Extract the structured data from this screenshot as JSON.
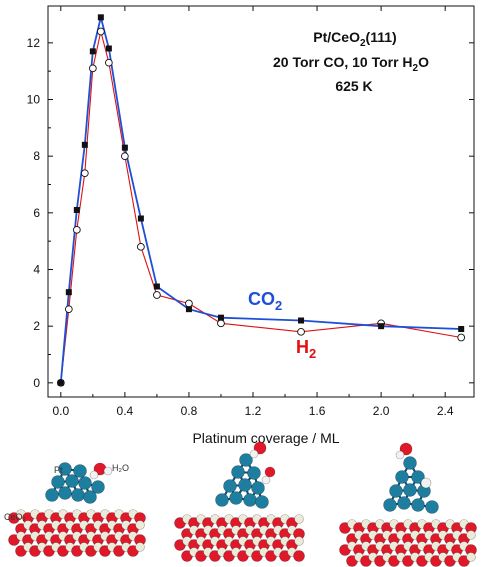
{
  "chart_data": {
    "type": "line",
    "xlabel": "Platinum coverage / ML",
    "ylabel": "",
    "xlim": [
      -0.08,
      2.58
    ],
    "ylim": [
      -0.5,
      13.3
    ],
    "xticks": [
      0.0,
      0.4,
      0.8,
      1.2,
      1.6,
      2.0,
      2.4
    ],
    "xtick_labels": [
      "0.0",
      "0.4",
      "0.8",
      "1.2",
      "1.6",
      "2.0",
      "2.4"
    ],
    "yticks": [
      0,
      2,
      4,
      6,
      8,
      10,
      12
    ],
    "ytick_labels": [
      "0",
      "2",
      "4",
      "6",
      "8",
      "10",
      "12"
    ],
    "annotation": {
      "line1_main": "Pt/CeO",
      "line1_sub": "2",
      "line1_tail": "(111)",
      "line2_main": "20 Torr CO, 10 Torr H",
      "line2_sub": "2",
      "line2_tail": "O",
      "line3": "625 K"
    },
    "series": [
      {
        "name_main": "CO",
        "name_sub": "2",
        "color": "#1f4fd6",
        "marker": "filled-square",
        "x": [
          0.0,
          0.05,
          0.1,
          0.15,
          0.2,
          0.25,
          0.3,
          0.4,
          0.5,
          0.6,
          0.8,
          1.0,
          1.5,
          2.0,
          2.5
        ],
        "y": [
          0.0,
          3.2,
          6.1,
          8.4,
          11.7,
          12.9,
          11.8,
          8.3,
          5.8,
          3.4,
          2.6,
          2.3,
          2.2,
          2.0,
          1.9
        ]
      },
      {
        "name_main": "H",
        "name_sub": "2",
        "color": "#e01010",
        "marker": "open-circle",
        "x": [
          0.0,
          0.05,
          0.1,
          0.15,
          0.2,
          0.25,
          0.3,
          0.4,
          0.5,
          0.6,
          0.8,
          1.0,
          1.5,
          2.0,
          2.5
        ],
        "y": [
          0.0,
          2.6,
          5.4,
          7.4,
          11.1,
          12.4,
          11.3,
          8.0,
          4.8,
          3.1,
          2.8,
          2.1,
          1.8,
          2.1,
          1.6
        ]
      }
    ]
  },
  "structures": {
    "pt_label": "Pt",
    "h2o_label": "H₂O",
    "ceo2_label": "CeO₂",
    "colors": {
      "pt": "#1e7ea0",
      "oxygen": "#e0182a",
      "cerium": "#ecead8",
      "hydrogen": "#f2f2f2"
    }
  }
}
